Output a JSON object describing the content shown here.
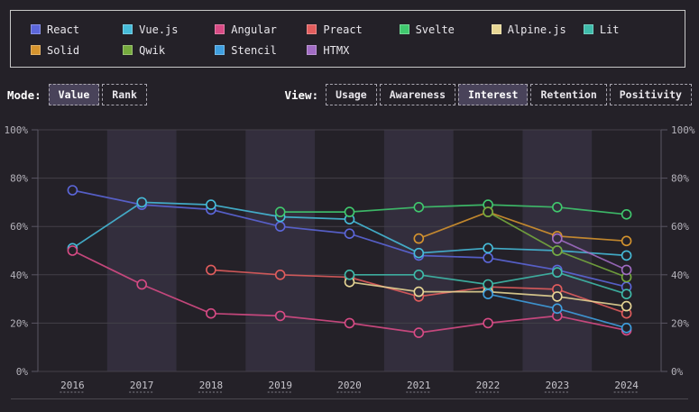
{
  "colors": {
    "page_bg": "#242128",
    "band": "#332e3d",
    "plot_bg": "#242128",
    "grid": "#434049",
    "axis_line": "#5a5663",
    "tick_text": "#b4b2ba",
    "year_text": "#c6c4cb",
    "legend_border": "#c8c8c8",
    "selected_bg": "#49435a",
    "divider": "#4a474f"
  },
  "legend": {
    "items": [
      {
        "label": "React",
        "color": "#5c67db"
      },
      {
        "label": "Vue.js",
        "color": "#46bcd9"
      },
      {
        "label": "Angular",
        "color": "#d84b85"
      },
      {
        "label": "Preact",
        "color": "#e25d5d"
      },
      {
        "label": "Svelte",
        "color": "#40c96e"
      },
      {
        "label": "Alpine.js",
        "color": "#e8d795"
      },
      {
        "label": "Lit",
        "color": "#3fbcab"
      },
      {
        "label": "Solid",
        "color": "#d6942e"
      },
      {
        "label": "Qwik",
        "color": "#76ab3e"
      },
      {
        "label": "Stencil",
        "color": "#3f9fe0"
      },
      {
        "label": "HTMX",
        "color": "#a16cc4"
      }
    ]
  },
  "controls": {
    "mode": {
      "label": "Mode:",
      "options": [
        {
          "label": "Value",
          "selected": true
        },
        {
          "label": "Rank",
          "selected": false
        }
      ]
    },
    "view": {
      "label": "View:",
      "options": [
        {
          "label": "Usage",
          "selected": false
        },
        {
          "label": "Awareness",
          "selected": false
        },
        {
          "label": "Interest",
          "selected": true
        },
        {
          "label": "Retention",
          "selected": false
        },
        {
          "label": "Positivity",
          "selected": false
        }
      ]
    }
  },
  "chart_data": {
    "type": "line",
    "x": [
      "2016",
      "2017",
      "2018",
      "2019",
      "2020",
      "2021",
      "2022",
      "2023",
      "2024"
    ],
    "ylim": [
      0,
      100
    ],
    "yticks": [
      0,
      20,
      40,
      60,
      80,
      100
    ],
    "ytick_suffix": "%",
    "grid": true,
    "banded_years": [
      "2017",
      "2019",
      "2021",
      "2023"
    ],
    "legend_position": "top",
    "series": [
      {
        "name": "React",
        "color": "#5c67db",
        "values": [
          75,
          69,
          67,
          60,
          57,
          48,
          47,
          42,
          35
        ]
      },
      {
        "name": "Vue.js",
        "color": "#46bcd9",
        "values": [
          51,
          70,
          69,
          64,
          63,
          49,
          51,
          50,
          48
        ]
      },
      {
        "name": "Angular",
        "color": "#d84b85",
        "values": [
          50,
          36,
          24,
          23,
          20,
          16,
          20,
          23,
          17
        ]
      },
      {
        "name": "Preact",
        "color": "#e25d5d",
        "values": [
          null,
          null,
          42,
          40,
          39,
          31,
          35,
          34,
          24
        ]
      },
      {
        "name": "Svelte",
        "color": "#40c96e",
        "values": [
          null,
          null,
          null,
          66,
          66,
          68,
          69,
          68,
          65
        ]
      },
      {
        "name": "Alpine.js",
        "color": "#e8d795",
        "values": [
          null,
          null,
          null,
          null,
          37,
          33,
          33,
          31,
          27
        ]
      },
      {
        "name": "Lit",
        "color": "#3fbcab",
        "values": [
          null,
          null,
          null,
          null,
          40,
          40,
          36,
          41,
          32
        ]
      },
      {
        "name": "Solid",
        "color": "#d6942e",
        "values": [
          null,
          null,
          null,
          null,
          null,
          55,
          66,
          56,
          54
        ]
      },
      {
        "name": "Qwik",
        "color": "#76ab3e",
        "values": [
          null,
          null,
          null,
          null,
          null,
          null,
          66,
          50,
          39
        ]
      },
      {
        "name": "Stencil",
        "color": "#3f9fe0",
        "values": [
          null,
          null,
          null,
          null,
          null,
          null,
          32,
          26,
          18
        ]
      },
      {
        "name": "HTMX",
        "color": "#a16cc4",
        "values": [
          null,
          null,
          null,
          null,
          null,
          null,
          null,
          55,
          42
        ]
      }
    ]
  }
}
